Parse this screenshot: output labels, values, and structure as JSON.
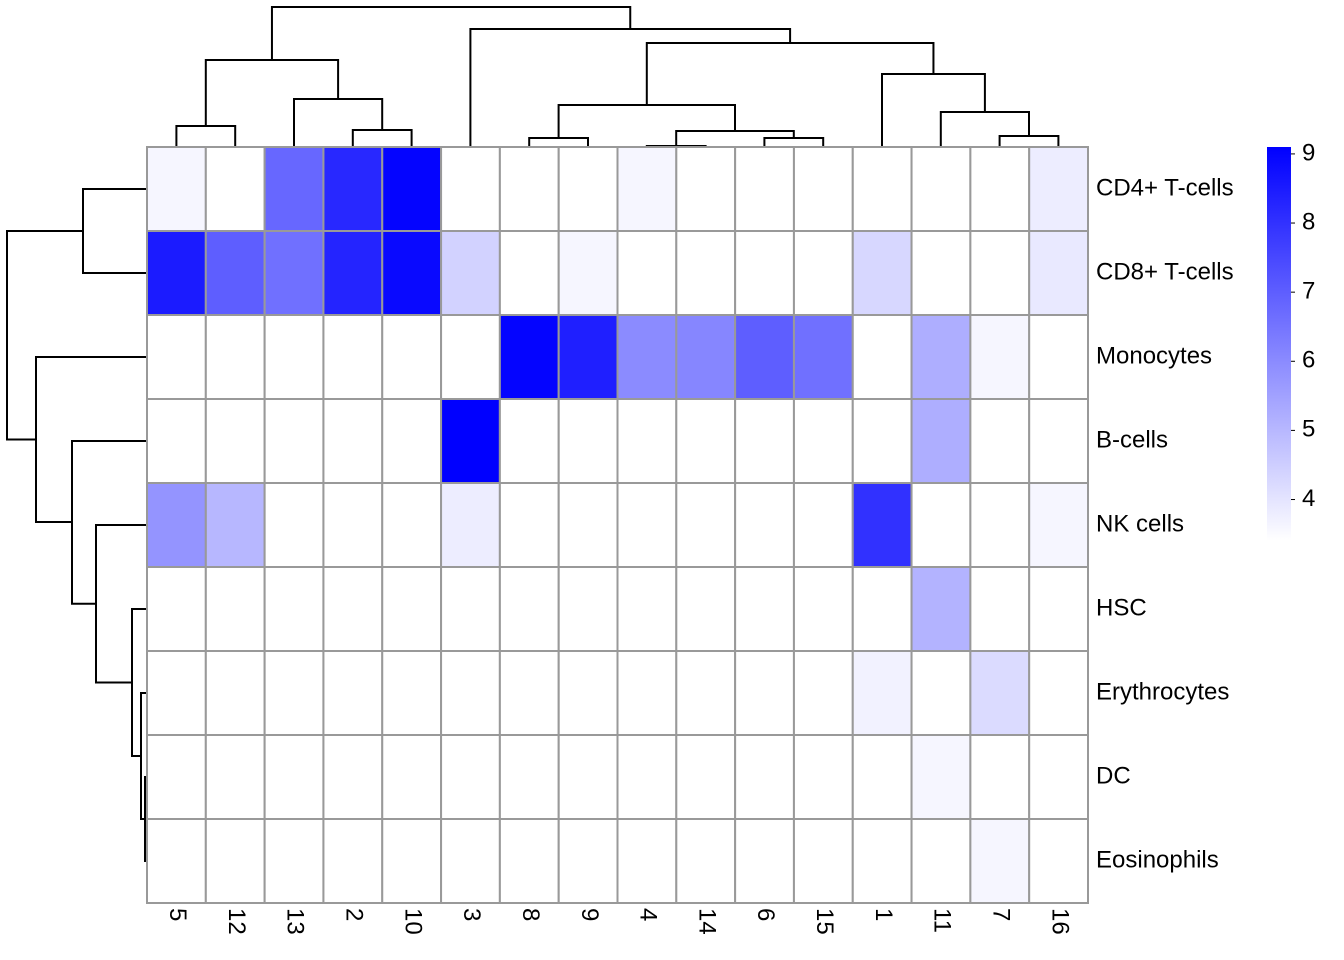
{
  "chart_data": {
    "type": "heatmap",
    "columns": [
      "5",
      "12",
      "13",
      "2",
      "10",
      "3",
      "8",
      "9",
      "4",
      "14",
      "6",
      "15",
      "1",
      "11",
      "7",
      "16"
    ],
    "rows": [
      "CD4+ T-cells",
      "CD8+ T-cells",
      "Monocytes",
      "B-cells",
      "NK cells",
      "HSC",
      "Erythrocytes",
      "DC",
      "Eosinophils"
    ],
    "values": [
      [
        3.6,
        3.4,
        6.8,
        8.2,
        9.0,
        3.4,
        3.4,
        3.4,
        3.6,
        3.4,
        3.4,
        3.4,
        3.4,
        3.4,
        3.4,
        3.8
      ],
      [
        8.5,
        7.0,
        6.6,
        8.3,
        8.9,
        4.4,
        3.4,
        3.6,
        3.4,
        3.4,
        3.4,
        3.4,
        4.3,
        3.4,
        3.4,
        3.9
      ],
      [
        3.4,
        3.4,
        3.4,
        3.4,
        3.4,
        3.4,
        9.0,
        8.4,
        6.0,
        6.1,
        7.0,
        6.6,
        3.4,
        5.2,
        3.6,
        3.4
      ],
      [
        3.4,
        3.4,
        3.4,
        3.4,
        3.4,
        9.1,
        3.4,
        3.4,
        3.4,
        3.4,
        3.4,
        3.4,
        3.4,
        5.2,
        3.4,
        3.4
      ],
      [
        5.8,
        5.0,
        3.4,
        3.4,
        3.4,
        3.8,
        3.4,
        3.4,
        3.4,
        3.4,
        3.4,
        3.4,
        8.0,
        3.4,
        3.4,
        3.6
      ],
      [
        3.4,
        3.4,
        3.4,
        3.4,
        3.4,
        3.4,
        3.4,
        3.4,
        3.4,
        3.4,
        3.4,
        3.4,
        3.4,
        5.1,
        3.4,
        3.4
      ],
      [
        3.4,
        3.4,
        3.4,
        3.4,
        3.4,
        3.4,
        3.4,
        3.4,
        3.4,
        3.4,
        3.4,
        3.4,
        3.7,
        3.4,
        4.2,
        3.4
      ],
      [
        3.4,
        3.4,
        3.4,
        3.4,
        3.4,
        3.4,
        3.4,
        3.4,
        3.4,
        3.4,
        3.4,
        3.4,
        3.4,
        3.6,
        3.4,
        3.4
      ],
      [
        3.4,
        3.4,
        3.4,
        3.4,
        3.4,
        3.4,
        3.4,
        3.4,
        3.4,
        3.4,
        3.4,
        3.4,
        3.4,
        3.4,
        3.6,
        3.4
      ]
    ],
    "colors": [
      "#ffffff",
      "#0000ff"
    ],
    "zlim": [
      3.4,
      9.1
    ],
    "zticks": [
      4,
      5,
      6,
      7,
      8,
      9
    ]
  }
}
